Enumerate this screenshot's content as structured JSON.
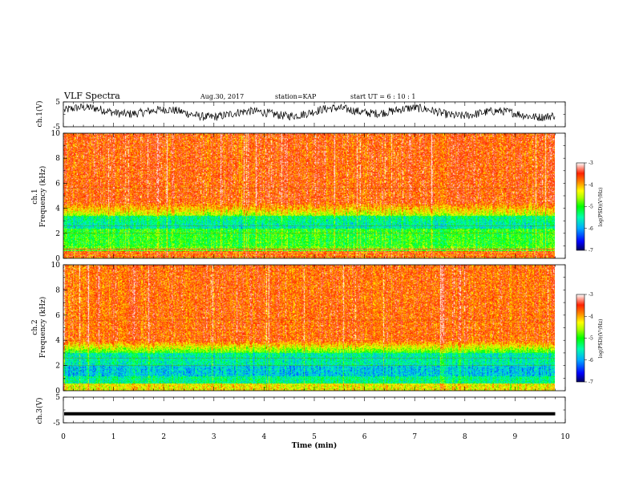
{
  "header": {
    "title": "VLF Spectra",
    "date": "Aug.30, 2017",
    "station": "station=KAP",
    "start": "start  UT =   6 : 10 : 1"
  },
  "chart_data": [
    {
      "type": "line",
      "name": "ch1-waveform",
      "ylabel": "ch.1(V)",
      "ylim": [
        -5,
        5
      ],
      "yticks": [
        "5",
        "-5"
      ],
      "xlim": [
        0,
        10
      ],
      "description_values": "voltage trace oscillating roughly between -2 and 3 V over 0-9.8 min"
    },
    {
      "type": "heatmap",
      "name": "ch1-spectrogram",
      "ylabel_line1": "ch.1",
      "ylabel_line2": "Frequency (kHz)",
      "ylim": [
        0,
        10
      ],
      "yticks": [
        "0",
        "2",
        "4",
        "6",
        "8",
        "10"
      ],
      "xlim": [
        0,
        10
      ],
      "colorbar": {
        "label": "log(PSD)(V²/Hz)",
        "range": [
          -7,
          -3
        ],
        "ticks": [
          "-3",
          "-4",
          "-5",
          "-6",
          "-7"
        ],
        "colors": [
          "#000060",
          "#0000ff",
          "#00aaff",
          "#00ffaa",
          "#00ff00",
          "#aaff00",
          "#ffff00",
          "#ff8800",
          "#ff2200",
          "#ffffff"
        ]
      }
    },
    {
      "type": "heatmap",
      "name": "ch2-spectrogram",
      "ylabel_line1": "ch.2",
      "ylabel_line2": "Frequency (kHz)",
      "ylim": [
        0,
        10
      ],
      "yticks": [
        "0",
        "2",
        "4",
        "6",
        "8",
        "10"
      ],
      "xlim": [
        0,
        10
      ],
      "colorbar": {
        "label": "log(PSD)(V²/Hz)",
        "range": [
          -7,
          -3
        ],
        "ticks": [
          "-3",
          "-4",
          "-5",
          "-6",
          "-7"
        ],
        "colors": [
          "#000060",
          "#0000ff",
          "#00aaff",
          "#00ffaa",
          "#00ff00",
          "#aaff00",
          "#ffff00",
          "#ff8800",
          "#ff2200",
          "#ffffff"
        ]
      }
    },
    {
      "type": "line",
      "name": "ch3-waveform",
      "ylabel": "ch.3(V)",
      "ylim": [
        -5,
        5
      ],
      "yticks": [
        "5",
        "-5"
      ],
      "xlim": [
        0,
        10
      ],
      "values_constant": -1.5
    }
  ],
  "xaxis": {
    "label": "Time (min)",
    "ticks": [
      "0",
      "1",
      "2",
      "3",
      "4",
      "5",
      "6",
      "7",
      "8",
      "9",
      "10"
    ],
    "data_end_min": 9.8
  }
}
